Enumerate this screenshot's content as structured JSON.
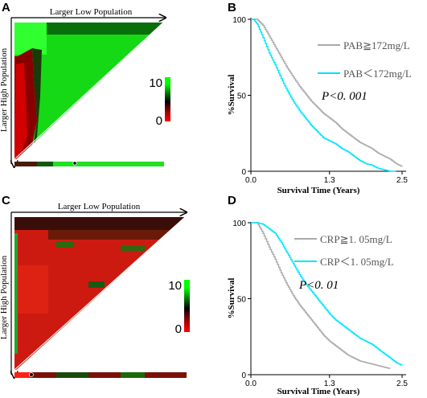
{
  "chart_data": [
    {
      "panel": "A",
      "type": "heatmap",
      "top_label": "Larger Low Population",
      "side_label": "Larger High Population",
      "colorbar": {
        "max": "10",
        "min": "0",
        "high_color": "#00ff00",
        "mid_color": "#000000",
        "low_color": "#ff0000"
      }
    },
    {
      "panel": "B",
      "type": "line",
      "xlabel": "Survival Time (Years)",
      "ylabel": "%Survival",
      "xlim": [
        0,
        2.5
      ],
      "ylim": [
        0,
        100
      ],
      "xticks": [
        "0.0",
        "1.3",
        "2.5"
      ],
      "yticks": [
        "0",
        "50",
        "100"
      ],
      "annotation": "P<0. 001",
      "series": [
        {
          "name": "PAB≧172mg/L",
          "color": "#aaaaaa",
          "x": [
            0,
            0.1,
            0.2,
            0.3,
            0.4,
            0.5,
            0.6,
            0.7,
            0.8,
            0.9,
            1.0,
            1.1,
            1.2,
            1.3,
            1.4,
            1.5,
            1.6,
            1.7,
            1.8,
            1.9,
            2.0,
            2.1,
            2.2,
            2.3,
            2.4,
            2.5
          ],
          "y": [
            100,
            100,
            96,
            89,
            82,
            75,
            68,
            62,
            56,
            51,
            46,
            42,
            38,
            35,
            32,
            28,
            25,
            22,
            19,
            17,
            15,
            12,
            10,
            8,
            5,
            3
          ]
        },
        {
          "name": "PAB＜172mg/L",
          "color": "#00e5ff",
          "x": [
            0,
            0.05,
            0.1,
            0.2,
            0.3,
            0.4,
            0.5,
            0.6,
            0.7,
            0.8,
            0.9,
            1.0,
            1.1,
            1.2,
            1.3,
            1.4,
            1.5,
            1.6,
            1.7,
            1.8,
            1.9,
            2.0,
            2.1,
            2.2,
            2.3,
            2.4
          ],
          "y": [
            100,
            100,
            97,
            88,
            78,
            70,
            61,
            53,
            46,
            40,
            35,
            30,
            26,
            22,
            20,
            18,
            15,
            13,
            10,
            7,
            5,
            4,
            2,
            1,
            0,
            0
          ]
        }
      ]
    },
    {
      "panel": "C",
      "type": "heatmap",
      "top_label": "Larger Low Population",
      "side_label": "Larger High Population",
      "colorbar": {
        "max": "10",
        "min": "0",
        "high_color": "#00ff00",
        "mid_color": "#000000",
        "low_color": "#ff0000"
      }
    },
    {
      "panel": "D",
      "type": "line",
      "xlabel": "Survival Time (Years)",
      "ylabel": "%Survival",
      "xlim": [
        0,
        2.5
      ],
      "ylim": [
        0,
        100
      ],
      "xticks": [
        "0.0",
        "1.3",
        "2.5"
      ],
      "yticks": [
        "0",
        "50",
        "100"
      ],
      "annotation": "P<0. 01",
      "series": [
        {
          "name": "CRP≧1. 05mg/L",
          "color": "#aaaaaa",
          "x": [
            0,
            0.1,
            0.2,
            0.3,
            0.4,
            0.5,
            0.6,
            0.7,
            0.8,
            0.9,
            1.0,
            1.1,
            1.2,
            1.3,
            1.4,
            1.5,
            1.6,
            1.7,
            1.8,
            1.9,
            2.0,
            2.1,
            2.2,
            2.3
          ],
          "y": [
            100,
            100,
            93,
            84,
            76,
            67,
            59,
            52,
            46,
            41,
            36,
            31,
            26,
            22,
            19,
            16,
            13,
            11,
            9,
            8,
            7,
            6,
            5,
            4
          ]
        },
        {
          "name": "CRP＜1. 05mg/L",
          "color": "#00e5ff",
          "x": [
            0,
            0.1,
            0.2,
            0.3,
            0.4,
            0.5,
            0.6,
            0.7,
            0.8,
            0.9,
            1.0,
            1.1,
            1.2,
            1.3,
            1.4,
            1.5,
            1.6,
            1.7,
            1.8,
            1.9,
            2.0,
            2.1,
            2.2,
            2.3,
            2.4,
            2.5
          ],
          "y": [
            100,
            100,
            99,
            96,
            93,
            87,
            80,
            73,
            66,
            60,
            55,
            50,
            45,
            40,
            36,
            33,
            30,
            27,
            24,
            22,
            20,
            17,
            14,
            11,
            8,
            6
          ]
        }
      ]
    }
  ]
}
